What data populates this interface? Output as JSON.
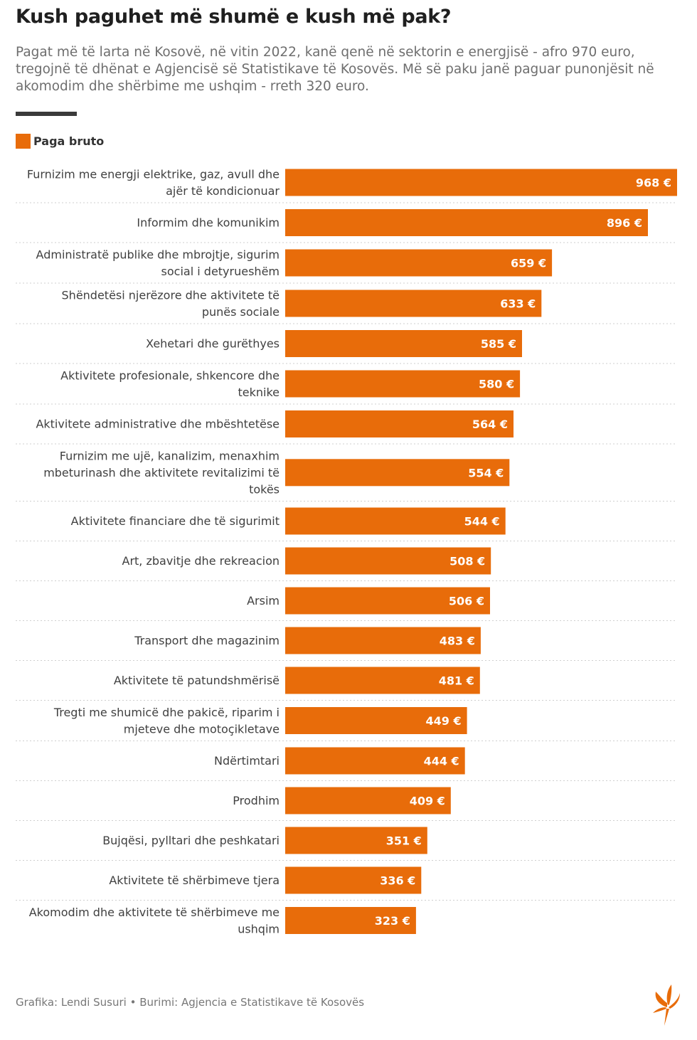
{
  "title": "Kush paguhet më shumë e kush më pak?",
  "subtitle": "Pagat më të larta në Kosovë, në vitin 2022, kanë qenë në sektorin e energjisë - afro 970 euro, tregojnë të dhënat e Agjencisë së Statistikave të Kosovës. Më së paku janë paguar punonjësit në akomodim dhe shërbime me ushqim - rreth 320 euro.",
  "colors": {
    "bar": "#e86c0a",
    "divider": "#3a3a3a",
    "separator": "#cfcfcf"
  },
  "chart_data": {
    "type": "bar",
    "orientation": "horizontal",
    "legend": [
      "Paga bruto"
    ],
    "categories": [
      [
        "Furnizim me energji elektrike, gaz, avull dhe",
        "ajër të kondicionuar"
      ],
      [
        "Informim dhe komunikim"
      ],
      [
        "Administratë publike dhe mbrojtje, sigurim",
        "social i detyrueshëm"
      ],
      [
        "Shëndetësi njerëzore dhe aktivitete të",
        "punës sociale"
      ],
      [
        "Xehetari dhe gurëthyes"
      ],
      [
        "Aktivitete profesionale, shkencore dhe",
        "teknike"
      ],
      [
        "Aktivitete administrative dhe mbështetëse"
      ],
      [
        "Furnizim me ujë, kanalizim, menaxhim",
        "mbeturinash dhe aktivitete revitalizimi të",
        "tokës"
      ],
      [
        "Aktivitete financiare dhe të sigurimit"
      ],
      [
        "Art, zbavitje dhe rekreacion"
      ],
      [
        "Arsim"
      ],
      [
        "Transport dhe magazinim"
      ],
      [
        "Aktivitete të patundshmërisë"
      ],
      [
        "Tregti me shumicë dhe pakicë, riparim i",
        "mjeteve dhe motoçikletave"
      ],
      [
        "Ndërtimtari"
      ],
      [
        "Prodhim"
      ],
      [
        "Bujqësi, pylltari dhe peshkatari"
      ],
      [
        "Aktivitete të shërbimeve tjera"
      ],
      [
        "Akomodim dhe aktivitete të shërbimeve me",
        "ushqim"
      ]
    ],
    "values": [
      968,
      896,
      659,
      633,
      585,
      580,
      564,
      554,
      544,
      508,
      506,
      483,
      481,
      449,
      444,
      409,
      351,
      336,
      323
    ],
    "value_suffix": " €",
    "xlim": [
      0,
      968
    ]
  },
  "footer": "Grafika: Lendi Susuri • Burimi: Agjencia e Statistikave të Kosovës",
  "logo_name": "rfe-rl-torch-logo"
}
